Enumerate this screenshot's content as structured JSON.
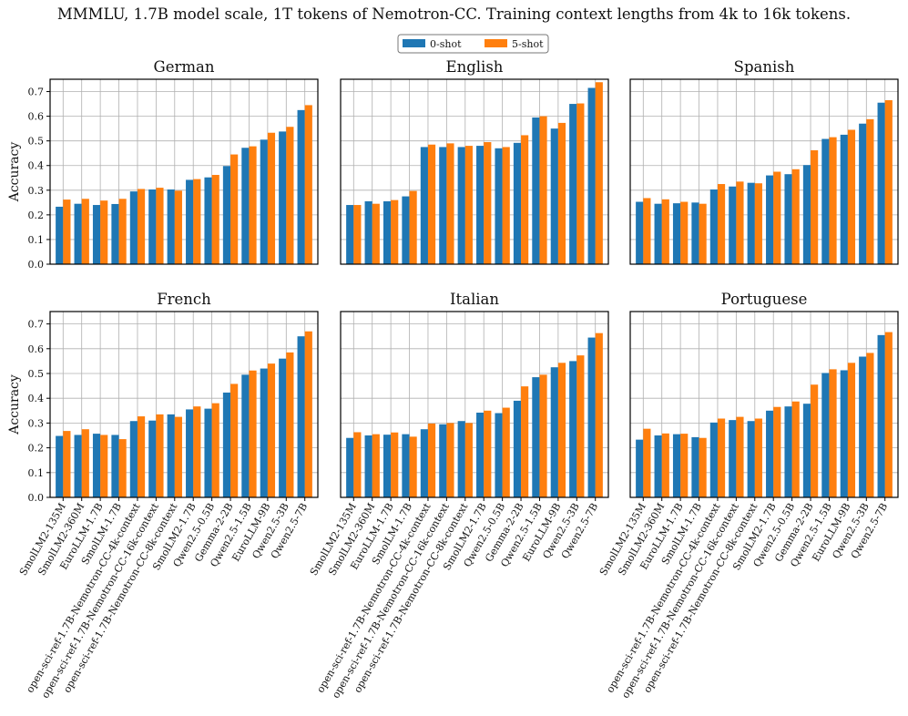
{
  "title": "MMMLU, 1.7B model scale, 1T tokens of Nemotron-CC. Training context lengths from 4k to 16k tokens.",
  "colors": {
    "zero_shot": "#1f77b4",
    "five_shot": "#ff7f0e",
    "grid": "#b0b0b0"
  },
  "legend": [
    {
      "label": "0-shot"
    },
    {
      "label": "5-shot"
    }
  ],
  "ylabel": "Accuracy",
  "chart_data": [
    {
      "type": "bar",
      "title": "German",
      "ylabel": "Accuracy",
      "ylim": [
        0,
        0.75
      ],
      "yticks": [
        "0.0",
        "0.1",
        "0.2",
        "0.3",
        "0.4",
        "0.5",
        "0.6",
        "0.7"
      ],
      "categories": [
        "SmolLM2-135M",
        "SmolLM2-360M",
        "EuroLLM-1.7B",
        "SmolLM-1.7B",
        "open-sci-ref-1.7B-Nemotron-CC-4k-context",
        "open-sci-ref-1.7B-Nemotron-CC-16k-context",
        "open-sci-ref-1.7B-Nemotron-CC-8k-context",
        "SmolLM2-1.7B",
        "Qwen2.5-0.5B",
        "Gemma-2-2B",
        "Qwen2.5-1.5B",
        "EuroLLM-9B",
        "Qwen2.5-3B",
        "Qwen2.5-7B"
      ],
      "series": [
        {
          "name": "0-shot",
          "values": [
            0.233,
            0.245,
            0.24,
            0.244,
            0.295,
            0.303,
            0.303,
            0.342,
            0.352,
            0.398,
            0.472,
            0.505,
            0.538,
            0.625
          ]
        },
        {
          "name": "5-shot",
          "values": [
            0.262,
            0.265,
            0.258,
            0.265,
            0.305,
            0.31,
            0.298,
            0.345,
            0.362,
            0.445,
            0.478,
            0.533,
            0.557,
            0.645
          ]
        }
      ]
    },
    {
      "type": "bar",
      "title": "English",
      "ylabel": "",
      "ylim": [
        0,
        0.75
      ],
      "yticks": [
        "0.0",
        "0.1",
        "0.2",
        "0.3",
        "0.4",
        "0.5",
        "0.6",
        "0.7"
      ],
      "categories": [
        "SmolLM2-135M",
        "SmolLM2-360M",
        "EuroLLM-1.7B",
        "SmolLM-1.7B",
        "open-sci-ref-1.7B-Nemotron-CC-4k-context",
        "open-sci-ref-1.7B-Nemotron-CC-16k-context",
        "open-sci-ref-1.7B-Nemotron-CC-8k-context",
        "SmolLM2-1.7B",
        "Qwen2.5-0.5B",
        "Gemma-2-2B",
        "Qwen2.5-1.5B",
        "EuroLLM-9B",
        "Qwen2.5-3B",
        "Qwen2.5-7B"
      ],
      "series": [
        {
          "name": "0-shot",
          "values": [
            0.24,
            0.255,
            0.255,
            0.275,
            0.475,
            0.475,
            0.475,
            0.48,
            0.47,
            0.492,
            0.595,
            0.55,
            0.65,
            0.715
          ]
        },
        {
          "name": "5-shot",
          "values": [
            0.24,
            0.245,
            0.26,
            0.297,
            0.485,
            0.49,
            0.48,
            0.495,
            0.475,
            0.523,
            0.6,
            0.573,
            0.652,
            0.738
          ]
        }
      ]
    },
    {
      "type": "bar",
      "title": "Spanish",
      "ylabel": "",
      "ylim": [
        0,
        0.75
      ],
      "yticks": [
        "0.0",
        "0.1",
        "0.2",
        "0.3",
        "0.4",
        "0.5",
        "0.6",
        "0.7"
      ],
      "categories": [
        "SmolLM2-135M",
        "SmolLM2-360M",
        "EuroLLM-1.7B",
        "SmolLM-1.7B",
        "open-sci-ref-1.7B-Nemotron-CC-4k-context",
        "open-sci-ref-1.7B-Nemotron-CC-16k-context",
        "open-sci-ref-1.7B-Nemotron-CC-8k-context",
        "SmolLM2-1.7B",
        "Qwen2.5-0.5B",
        "Gemma-2-2B",
        "Qwen2.5-1.5B",
        "EuroLLM-9B",
        "Qwen2.5-3B",
        "Qwen2.5-7B"
      ],
      "series": [
        {
          "name": "0-shot",
          "values": [
            0.253,
            0.245,
            0.247,
            0.25,
            0.303,
            0.315,
            0.33,
            0.36,
            0.365,
            0.402,
            0.508,
            0.525,
            0.57,
            0.655
          ]
        },
        {
          "name": "5-shot",
          "values": [
            0.268,
            0.263,
            0.253,
            0.245,
            0.325,
            0.335,
            0.328,
            0.375,
            0.385,
            0.462,
            0.515,
            0.545,
            0.588,
            0.665
          ]
        }
      ]
    },
    {
      "type": "bar",
      "title": "French",
      "ylabel": "Accuracy",
      "ylim": [
        0,
        0.75
      ],
      "yticks": [
        "0.0",
        "0.1",
        "0.2",
        "0.3",
        "0.4",
        "0.5",
        "0.6",
        "0.7"
      ],
      "categories": [
        "SmolLM2-135M",
        "SmolLM2-360M",
        "EuroLLM-1.7B",
        "SmolLM-1.7B",
        "open-sci-ref-1.7B-Nemotron-CC-4k-context",
        "open-sci-ref-1.7B-Nemotron-CC-16k-context",
        "open-sci-ref-1.7B-Nemotron-CC-8k-context",
        "SmolLM2-1.7B",
        "Qwen2.5-0.5B",
        "Gemma-2-2B",
        "Qwen2.5-1.5B",
        "EuroLLM-9B",
        "Qwen2.5-3B",
        "Qwen2.5-7B"
      ],
      "series": [
        {
          "name": "0-shot",
          "values": [
            0.248,
            0.252,
            0.257,
            0.252,
            0.308,
            0.31,
            0.335,
            0.355,
            0.358,
            0.423,
            0.495,
            0.52,
            0.56,
            0.65
          ]
        },
        {
          "name": "5-shot",
          "values": [
            0.268,
            0.275,
            0.252,
            0.235,
            0.327,
            0.335,
            0.325,
            0.367,
            0.38,
            0.458,
            0.512,
            0.54,
            0.585,
            0.67
          ]
        }
      ]
    },
    {
      "type": "bar",
      "title": "Italian",
      "ylabel": "",
      "ylim": [
        0,
        0.75
      ],
      "yticks": [
        "0.0",
        "0.1",
        "0.2",
        "0.3",
        "0.4",
        "0.5",
        "0.6",
        "0.7"
      ],
      "categories": [
        "SmolLM2-135M",
        "SmolLM2-360M",
        "EuroLLM-1.7B",
        "SmolLM-1.7B",
        "open-sci-ref-1.7B-Nemotron-CC-4k-context",
        "open-sci-ref-1.7B-Nemotron-CC-16k-context",
        "open-sci-ref-1.7B-Nemotron-CC-8k-context",
        "SmolLM2-1.7B",
        "Qwen2.5-0.5B",
        "Gemma-2-2B",
        "Qwen2.5-1.5B",
        "EuroLLM-9B",
        "Qwen2.5-3B",
        "Qwen2.5-7B"
      ],
      "series": [
        {
          "name": "0-shot",
          "values": [
            0.24,
            0.25,
            0.253,
            0.255,
            0.275,
            0.295,
            0.308,
            0.342,
            0.34,
            0.39,
            0.485,
            0.525,
            0.55,
            0.645
          ]
        },
        {
          "name": "5-shot",
          "values": [
            0.263,
            0.255,
            0.262,
            0.245,
            0.298,
            0.3,
            0.3,
            0.35,
            0.362,
            0.448,
            0.495,
            0.543,
            0.573,
            0.663
          ]
        }
      ]
    },
    {
      "type": "bar",
      "title": "Portuguese",
      "ylabel": "",
      "ylim": [
        0,
        0.75
      ],
      "yticks": [
        "0.0",
        "0.1",
        "0.2",
        "0.3",
        "0.4",
        "0.5",
        "0.6",
        "0.7"
      ],
      "categories": [
        "SmolLM2-135M",
        "SmolLM2-360M",
        "EuroLLM-1.7B",
        "SmolLM-1.7B",
        "open-sci-ref-1.7B-Nemotron-CC-4k-context",
        "open-sci-ref-1.7B-Nemotron-CC-16k-context",
        "open-sci-ref-1.7B-Nemotron-CC-8k-context",
        "SmolLM2-1.7B",
        "Qwen2.5-0.5B",
        "Gemma-2-2B",
        "Qwen2.5-1.5B",
        "EuroLLM-9B",
        "Qwen2.5-3B",
        "Qwen2.5-7B"
      ],
      "series": [
        {
          "name": "0-shot",
          "values": [
            0.233,
            0.25,
            0.255,
            0.243,
            0.302,
            0.312,
            0.308,
            0.35,
            0.367,
            0.378,
            0.502,
            0.513,
            0.568,
            0.655
          ]
        },
        {
          "name": "5-shot",
          "values": [
            0.277,
            0.258,
            0.257,
            0.24,
            0.318,
            0.325,
            0.318,
            0.365,
            0.387,
            0.455,
            0.517,
            0.543,
            0.583,
            0.667
          ]
        }
      ]
    }
  ]
}
